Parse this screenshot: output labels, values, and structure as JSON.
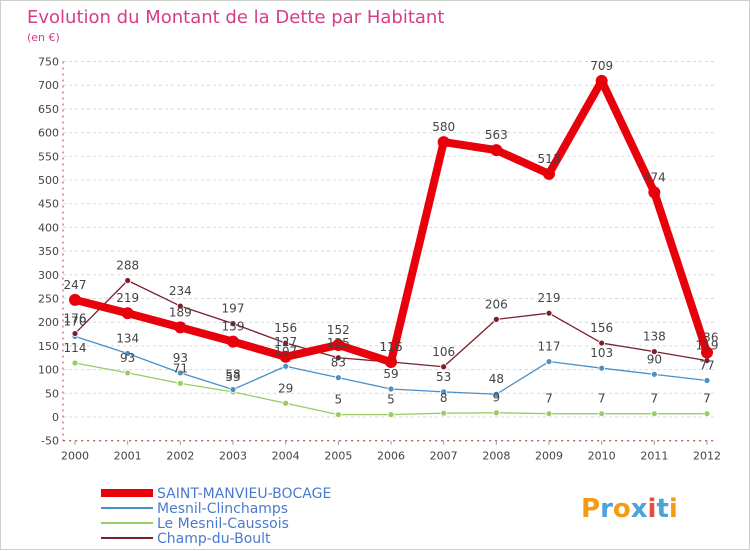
{
  "chart_data": {
    "type": "line",
    "title": "Evolution du Montant de la Dette par Habitant",
    "subtitle": "(en €)",
    "categories": [
      "2000",
      "2001",
      "2002",
      "2003",
      "2004",
      "2005",
      "2006",
      "2007",
      "2008",
      "2009",
      "2010",
      "2011",
      "2012"
    ],
    "ylim": [
      -50,
      750
    ],
    "yticks": [
      -50,
      0,
      50,
      100,
      150,
      200,
      250,
      300,
      350,
      400,
      450,
      500,
      550,
      600,
      650,
      700,
      750
    ],
    "grid": "horizontal-dashed",
    "legend_position": "bottom-left",
    "series": [
      {
        "name": "SAINT-MANVIEU-BOCAGE",
        "color": "#e8000b",
        "values": [
          247,
          219,
          189,
          159,
          127,
          152,
          116,
          580,
          563,
          513,
          709,
          474,
          136
        ]
      },
      {
        "name": "Mesnil-Clinchamps",
        "color": "#4a90c8",
        "values": [
          170,
          134,
          93,
          58,
          107,
          83,
          59,
          53,
          48,
          117,
          103,
          90,
          77
        ]
      },
      {
        "name": "Le Mesnil-Caussois",
        "color": "#99cc66",
        "values": [
          114,
          93,
          71,
          53,
          29,
          5,
          5,
          8,
          9,
          7,
          7,
          7,
          7
        ]
      },
      {
        "name": "Champ-du-Boult",
        "color": "#7a1f2b",
        "values": [
          176,
          288,
          234,
          197,
          156,
          125,
          116,
          106,
          206,
          219,
          156,
          138,
          119
        ]
      }
    ]
  },
  "logo": {
    "text": "Proxiti",
    "colors": [
      "#f39c12",
      "#4aa3df",
      "#f39c12",
      "#4aa3df",
      "#e74c3c",
      "#4aa3df",
      "#f39c12"
    ]
  }
}
